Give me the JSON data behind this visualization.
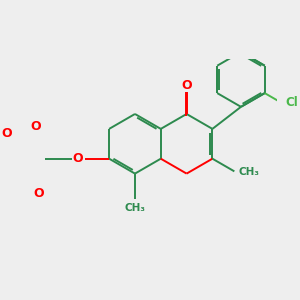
{
  "bg_color": "#eeeeee",
  "bond_color": "#2d8a4e",
  "oxygen_color": "#ff0000",
  "chlorine_color": "#4ab84a",
  "lw": 1.4,
  "figsize": [
    3.0,
    3.0
  ],
  "dpi": 100,
  "xlim": [
    -2.8,
    2.8
  ],
  "ylim": [
    -2.2,
    2.2
  ]
}
